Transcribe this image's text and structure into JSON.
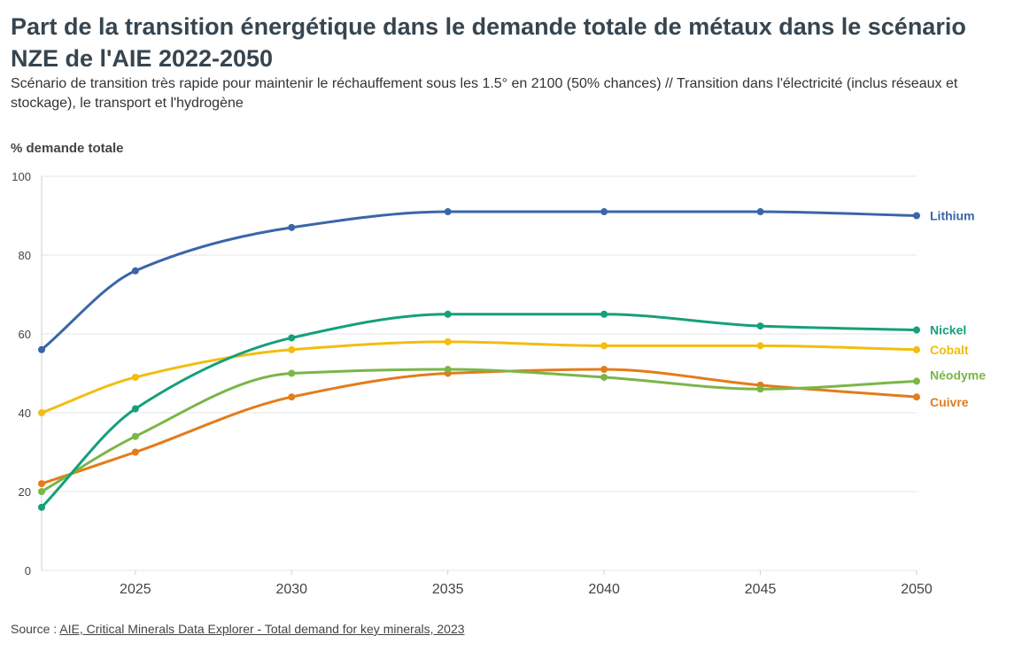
{
  "title": "Part de la transition énergétique dans le demande totale de métaux dans le scénario NZE de l'AIE 2022-2050",
  "subtitle": "Scénario de transition très rapide pour maintenir le réchauffement sous les 1.5° en 2100 (50% chances) // Transition dans l'électricité (inclus réseaux et stockage), le transport et l'hydrogène",
  "source": {
    "prefix": "Source : ",
    "link_text": "AIE, Critical Minerals Data Explorer - Total demand for key minerals, 2023"
  },
  "chart_data": {
    "type": "line",
    "title": "Part de la transition énergétique dans le demande totale de métaux dans le scénario NZE de l'AIE 2022-2050",
    "ylabel": "% demande totale",
    "xlabel": "",
    "x": [
      2022,
      2025,
      2030,
      2035,
      2040,
      2045,
      2050
    ],
    "xlim": [
      2022,
      2050
    ],
    "ylim": [
      0,
      100
    ],
    "xticks": [
      2025,
      2030,
      2035,
      2040,
      2045,
      2050
    ],
    "yticks": [
      0,
      20,
      40,
      60,
      80,
      100
    ],
    "grid": true,
    "legend": "direct labels at line ends (right)",
    "series": [
      {
        "name": "Lithium",
        "color": "#3a66a7",
        "values": [
          56,
          76,
          87,
          91,
          91,
          91,
          90
        ]
      },
      {
        "name": "Nickel",
        "color": "#15a07a",
        "values": [
          16,
          41,
          59,
          65,
          65,
          62,
          61
        ]
      },
      {
        "name": "Cobalt",
        "color": "#f2bd0f",
        "values": [
          40,
          49,
          56,
          58,
          57,
          57,
          56
        ]
      },
      {
        "name": "Néodyme",
        "color": "#7ab648",
        "values": [
          20,
          34,
          50,
          51,
          49,
          46,
          48
        ]
      },
      {
        "name": "Cuivre",
        "color": "#e37c1a",
        "values": [
          22,
          30,
          44,
          50,
          51,
          47,
          44
        ]
      }
    ]
  }
}
